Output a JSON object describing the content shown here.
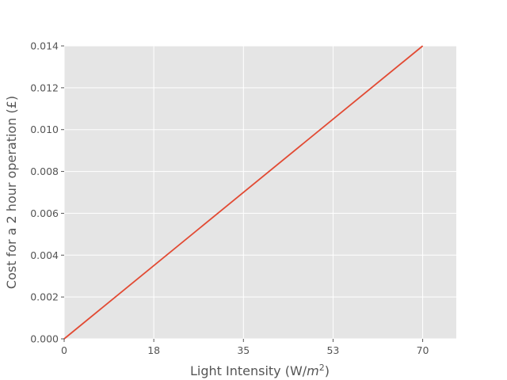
{
  "chart_data": {
    "type": "line",
    "title": "",
    "xlabel_main": "Light Intensity (W/",
    "xlabel_var": "m",
    "xlabel_exp": "2",
    "xlabel_close": ")",
    "ylabel": "Cost for a 2 hour operation (£)",
    "xlim": [
      0,
      77
    ],
    "ylim": [
      0,
      0.014
    ],
    "x_ticks": [
      {
        "value": 0,
        "label": "0"
      },
      {
        "value": 17.6,
        "label": "18"
      },
      {
        "value": 35.2,
        "label": "35"
      },
      {
        "value": 52.8,
        "label": "53"
      },
      {
        "value": 70.4,
        "label": "70"
      }
    ],
    "y_ticks": [
      {
        "value": 0.0,
        "label": "0.000"
      },
      {
        "value": 0.002,
        "label": "0.002"
      },
      {
        "value": 0.004,
        "label": "0.004"
      },
      {
        "value": 0.006,
        "label": "0.006"
      },
      {
        "value": 0.008,
        "label": "0.008"
      },
      {
        "value": 0.01,
        "label": "0.010"
      },
      {
        "value": 0.012,
        "label": "0.012"
      },
      {
        "value": 0.014,
        "label": "0.014"
      }
    ],
    "grid": true,
    "series": [
      {
        "color": "#E24A33",
        "x": [
          0,
          70.4
        ],
        "y": [
          0,
          0.014
        ]
      }
    ]
  }
}
